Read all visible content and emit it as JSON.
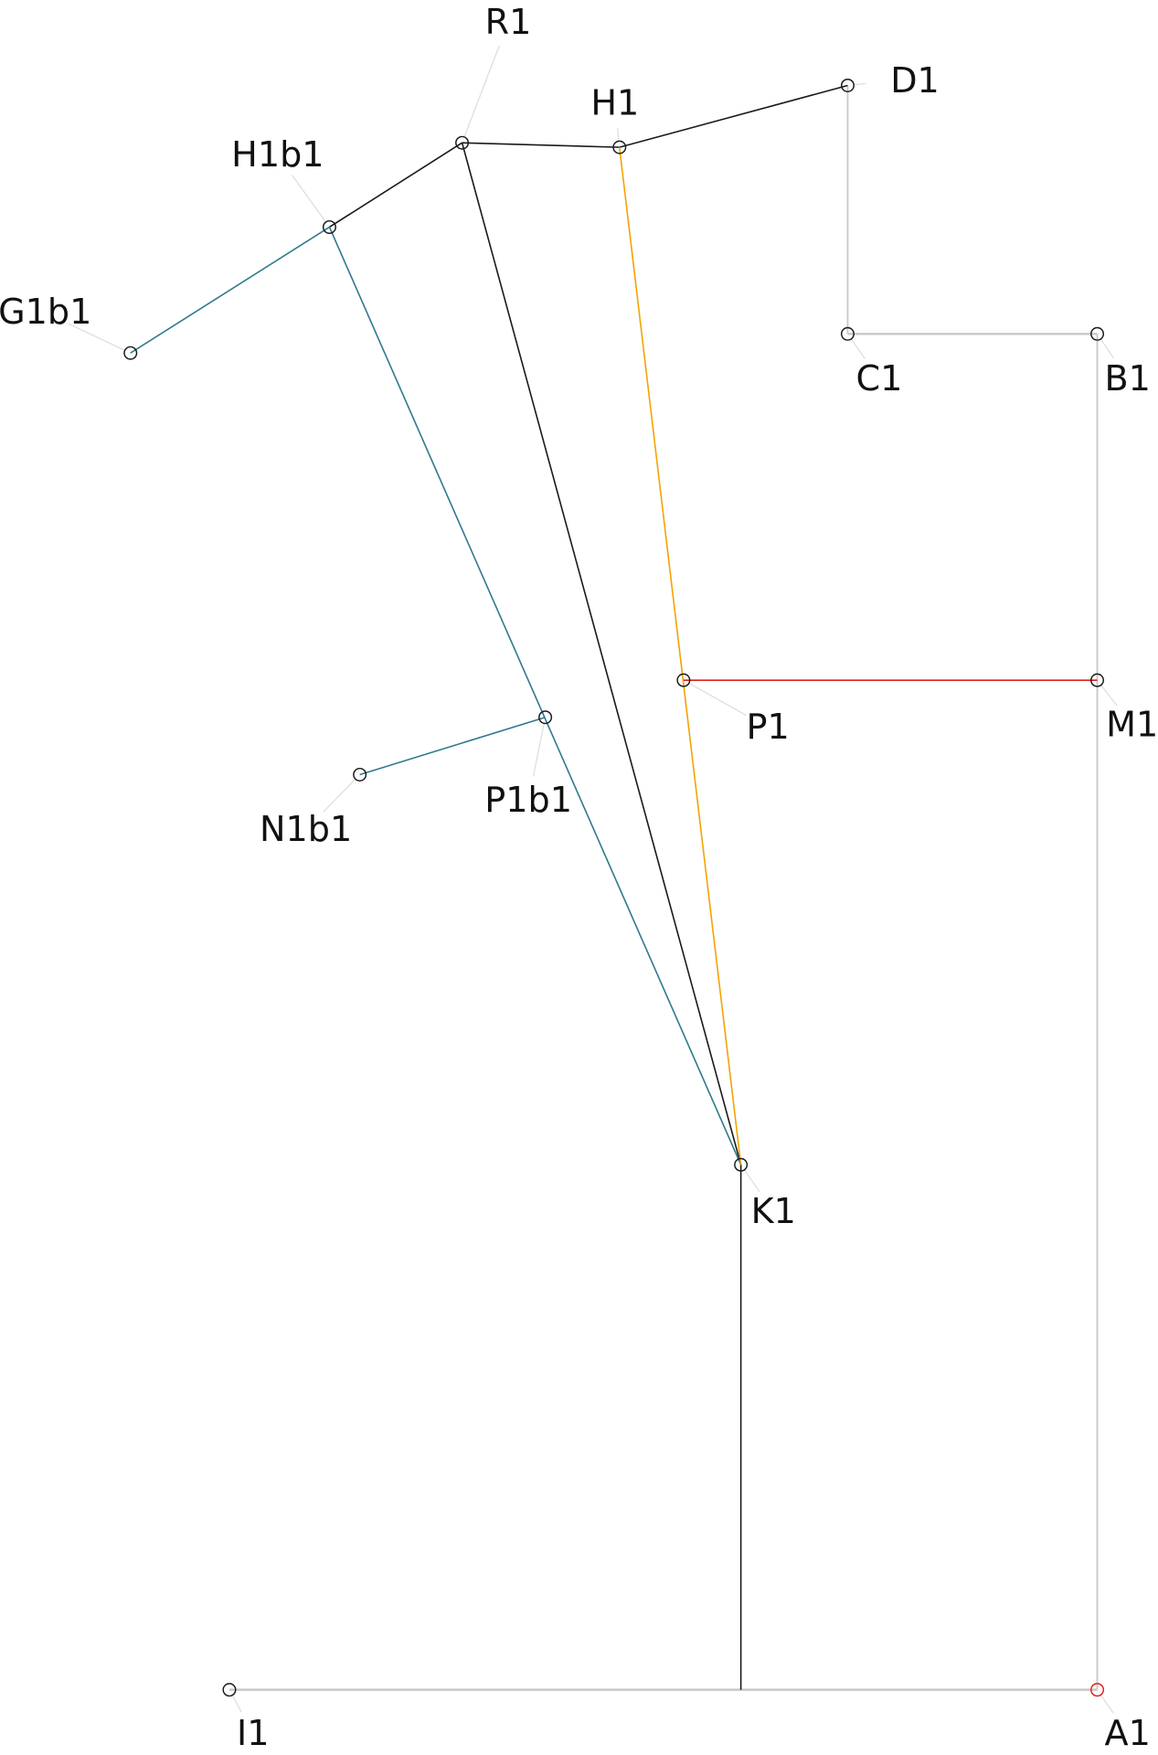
{
  "colors": {
    "main_line": "#1a1a1a",
    "helper_line": "#c8c8c8",
    "teal_line": "#2f7a8c",
    "orange_line": "#f5a300",
    "red_line": "#e02020",
    "point": "#1a1a1a",
    "point_highlight": "#e02020",
    "leader": "#dddddd"
  },
  "points": {
    "R1": "R1",
    "H1": "H1",
    "D1": "D1",
    "H1b1": "H1b1",
    "G1b1": "G1b1",
    "C1": "C1",
    "B1": "B1",
    "P1": "P1",
    "M1": "M1",
    "P1b1": "P1b1",
    "N1b1": "N1b1",
    "K1": "K1",
    "I1": "I1",
    "A1": "A1"
  }
}
